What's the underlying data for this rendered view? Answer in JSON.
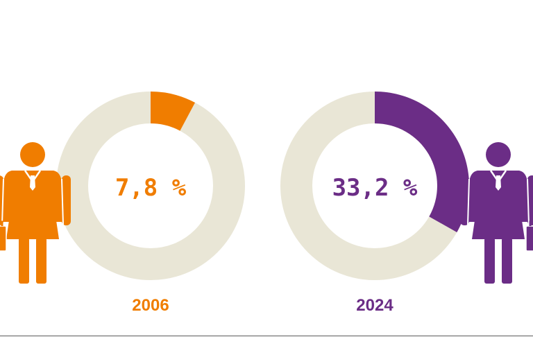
{
  "chart_data": {
    "type": "pie",
    "title": "",
    "series": [
      {
        "name": "2006",
        "category": "2006",
        "value": 7.8,
        "value_label": "7,8 %",
        "color": "#f07d00",
        "track_color": "#e9e6d6",
        "figure": "woman-businessperson-icon"
      },
      {
        "name": "2024",
        "category": "2024",
        "value": 33.2,
        "value_label": "33,2 %",
        "color": "#6b2d86",
        "track_color": "#e9e6d6",
        "figure": "woman-businessperson-icon"
      }
    ],
    "max": 100,
    "legend": "none"
  }
}
